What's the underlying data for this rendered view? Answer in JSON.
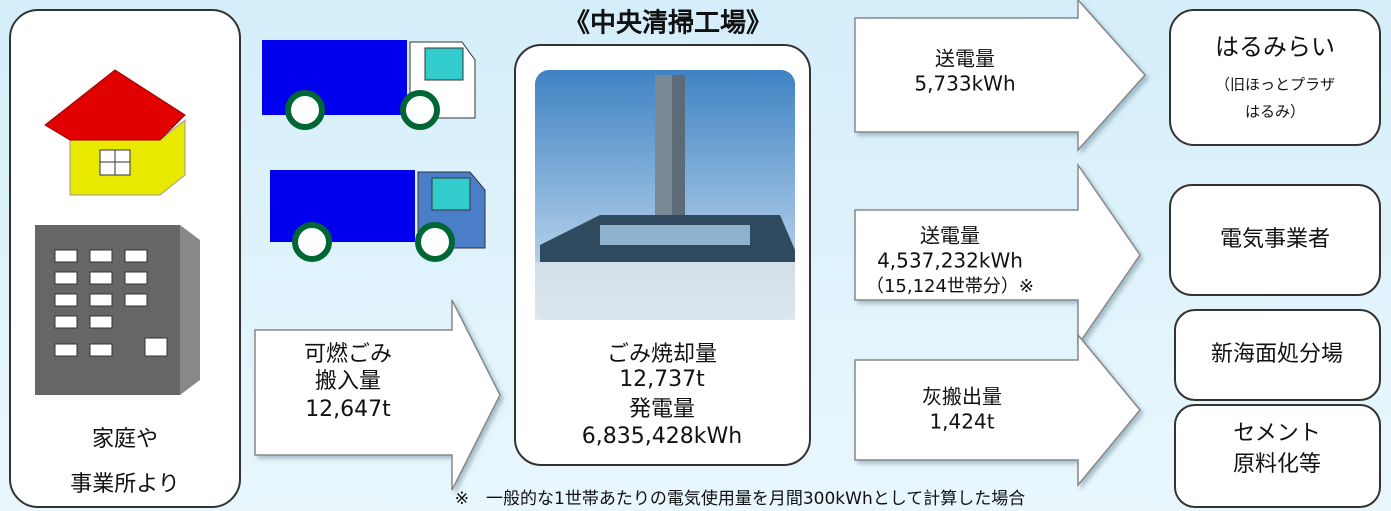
{
  "source": {
    "lines": [
      "家庭や",
      "事業所より"
    ]
  },
  "intake": {
    "lines": [
      "可燃ごみ",
      "搬入量",
      "12,647t"
    ]
  },
  "plant": {
    "title": "《中央清掃工場》",
    "lines": [
      "ごみ焼却量",
      "12,737t",
      "発電量",
      "6,835,428kWh"
    ]
  },
  "flows": [
    {
      "lines": [
        "送電量",
        "5,733kWh"
      ]
    },
    {
      "lines": [
        "送電量",
        "4,537,232kWh",
        "（15,124世帯分）※"
      ]
    },
    {
      "lines": [
        "灰搬出量",
        "1,424t"
      ]
    }
  ],
  "destinations": [
    {
      "lines": [
        "はるみらい",
        "（旧ほっとプラザ",
        "はるみ）"
      ]
    },
    {
      "lines": [
        "電気事業者"
      ]
    },
    {
      "lines": [
        "新海面処分場"
      ]
    },
    {
      "lines": [
        "セメント",
        "原料化等"
      ]
    }
  ],
  "footnote": "※　一般的な1世帯あたりの電気使用量を月間300kWhとして計算した場合"
}
